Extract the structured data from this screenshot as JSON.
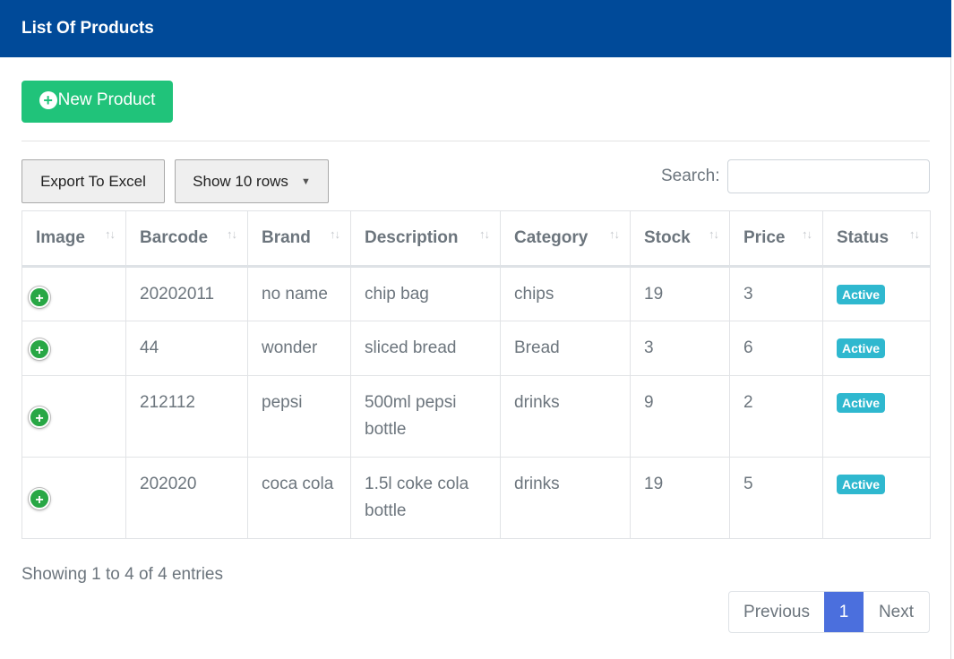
{
  "header": {
    "title": "List Of Products"
  },
  "toolbar": {
    "new_product_label": "New Product",
    "export_label": "Export To Excel",
    "show_rows_label": "Show 10 rows",
    "search_label": "Search:",
    "search_value": ""
  },
  "table": {
    "columns": [
      "Image",
      "Barcode",
      "Brand",
      "Description",
      "Category",
      "Stock",
      "Price",
      "Status"
    ],
    "rows": [
      {
        "barcode": "20202011",
        "brand": "no name",
        "description": "chip bag",
        "category": "chips",
        "stock": "19",
        "price": "3",
        "status": "Active"
      },
      {
        "barcode": "44",
        "brand": "wonder",
        "description": "sliced bread",
        "category": "Bread",
        "stock": "3",
        "price": "6",
        "status": "Active"
      },
      {
        "barcode": "212112",
        "brand": "pepsi",
        "description": "500ml pepsi bottle",
        "category": "drinks",
        "stock": "9",
        "price": "2",
        "status": "Active"
      },
      {
        "barcode": "202020",
        "brand": "coca cola",
        "description": "1.5l coke cola bottle",
        "category": "drinks",
        "stock": "19",
        "price": "5",
        "status": "Active"
      }
    ]
  },
  "footer": {
    "info": "Showing 1 to 4 of 4 entries",
    "pagination": {
      "previous": "Previous",
      "current": "1",
      "next": "Next"
    }
  },
  "colors": {
    "header_bg": "#004a99",
    "new_button": "#20c37a",
    "status_badge": "#2fb8cf",
    "expand_icon": "#28a745",
    "active_page": "#4b6fdd"
  },
  "icons": {
    "new_product": "plus-circle-icon",
    "sort": "sort-arrows-icon",
    "expand": "expand-row-icon",
    "dropdown": "caret-down-icon"
  }
}
